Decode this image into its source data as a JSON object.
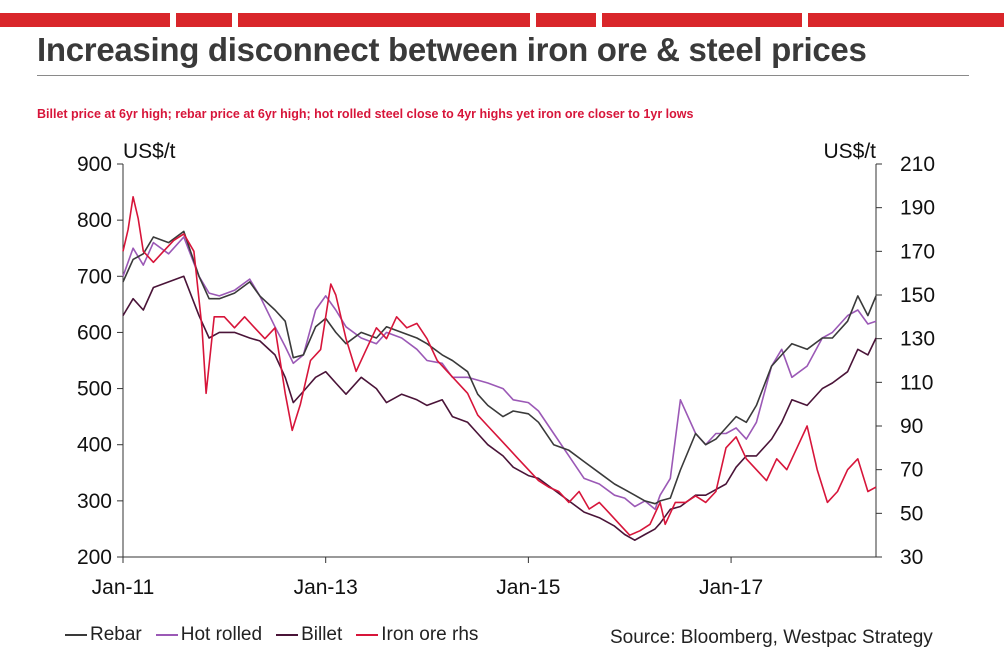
{
  "header": {
    "title": "Increasing disconnect between iron ore & steel prices",
    "subtitle": "Billet price at 6yr high; rebar price at 6yr high; hot rolled steel close to 4yr highs yet iron ore closer to 1yr lows"
  },
  "source": "Source: Bloomberg,  Westpac Strategy",
  "colors": {
    "band": "#d9262a",
    "rebar": "#3a3a3a",
    "hot_rolled": "#9b59b6",
    "billet": "#4a1438",
    "iron_ore": "#d7153a"
  },
  "chart_data": {
    "type": "line",
    "title": "Increasing disconnect between iron ore & steel prices",
    "ylabel_left": "US$/t",
    "ylabel_right": "US$/t",
    "ylim_left": [
      200,
      900
    ],
    "ylim_right": [
      30,
      210
    ],
    "y_ticks_left": [
      900,
      800,
      700,
      600,
      500,
      400,
      300,
      200
    ],
    "y_ticks_right": [
      210,
      190,
      170,
      150,
      130,
      110,
      90,
      70,
      50,
      30
    ],
    "x_range": [
      2011.0,
      2018.43
    ],
    "x_ticks": [
      {
        "x": 2011.0,
        "label": "Jan-11"
      },
      {
        "x": 2013.0,
        "label": "Jan-13"
      },
      {
        "x": 2015.0,
        "label": "Jan-15"
      },
      {
        "x": 2017.0,
        "label": "Jan-17"
      }
    ],
    "series": [
      {
        "name": "Rebar",
        "axis": "left",
        "x": [
          2011.0,
          2011.1,
          2011.2,
          2011.3,
          2011.45,
          2011.6,
          2011.75,
          2011.85,
          2011.95,
          2012.1,
          2012.25,
          2012.35,
          2012.5,
          2012.6,
          2012.68,
          2012.78,
          2012.9,
          2013.0,
          2013.1,
          2013.2,
          2013.35,
          2013.5,
          2013.6,
          2013.75,
          2013.9,
          2014.0,
          2014.15,
          2014.25,
          2014.4,
          2014.5,
          2014.6,
          2014.75,
          2014.85,
          2015.0,
          2015.1,
          2015.25,
          2015.4,
          2015.55,
          2015.7,
          2015.85,
          2015.95,
          2016.05,
          2016.15,
          2016.25,
          2016.3,
          2016.4,
          2016.5,
          2016.65,
          2016.75,
          2016.85,
          2016.95,
          2017.05,
          2017.15,
          2017.25,
          2017.4,
          2017.5,
          2017.6,
          2017.75,
          2017.9,
          2018.0,
          2018.15,
          2018.25,
          2018.35,
          2018.43
        ],
        "values": [
          690,
          730,
          740,
          770,
          760,
          780,
          700,
          660,
          660,
          670,
          690,
          665,
          640,
          620,
          555,
          560,
          610,
          625,
          600,
          580,
          600,
          590,
          610,
          600,
          590,
          580,
          560,
          550,
          530,
          490,
          470,
          450,
          460,
          455,
          440,
          400,
          390,
          370,
          350,
          330,
          320,
          310,
          300,
          295,
          300,
          305,
          355,
          420,
          400,
          410,
          430,
          450,
          440,
          470,
          540,
          560,
          580,
          570,
          590,
          590,
          620,
          665,
          630,
          665
        ]
      },
      {
        "name": "Hot rolled",
        "axis": "left",
        "x": [
          2011.0,
          2011.1,
          2011.2,
          2011.3,
          2011.45,
          2011.6,
          2011.75,
          2011.85,
          2011.95,
          2012.1,
          2012.25,
          2012.35,
          2012.5,
          2012.6,
          2012.68,
          2012.78,
          2012.9,
          2013.0,
          2013.1,
          2013.2,
          2013.35,
          2013.5,
          2013.6,
          2013.75,
          2013.9,
          2014.0,
          2014.15,
          2014.25,
          2014.4,
          2014.5,
          2014.6,
          2014.75,
          2014.85,
          2015.0,
          2015.1,
          2015.25,
          2015.4,
          2015.55,
          2015.7,
          2015.85,
          2015.95,
          2016.05,
          2016.15,
          2016.25,
          2016.3,
          2016.4,
          2016.5,
          2016.65,
          2016.75,
          2016.85,
          2016.95,
          2017.05,
          2017.15,
          2017.25,
          2017.4,
          2017.5,
          2017.6,
          2017.75,
          2017.9,
          2018.0,
          2018.15,
          2018.25,
          2018.35,
          2018.43
        ],
        "values": [
          700,
          750,
          720,
          760,
          740,
          770,
          700,
          670,
          665,
          675,
          695,
          665,
          610,
          575,
          545,
          560,
          640,
          665,
          640,
          610,
          590,
          580,
          600,
          590,
          570,
          550,
          545,
          520,
          520,
          515,
          510,
          500,
          480,
          475,
          460,
          420,
          380,
          340,
          330,
          310,
          305,
          290,
          300,
          285,
          310,
          340,
          480,
          420,
          400,
          420,
          420,
          430,
          410,
          440,
          540,
          570,
          520,
          540,
          590,
          600,
          630,
          640,
          615,
          620
        ]
      },
      {
        "name": "Billet",
        "axis": "left",
        "x": [
          2011.0,
          2011.1,
          2011.2,
          2011.3,
          2011.45,
          2011.6,
          2011.75,
          2011.85,
          2011.95,
          2012.1,
          2012.25,
          2012.35,
          2012.5,
          2012.6,
          2012.68,
          2012.78,
          2012.9,
          2013.0,
          2013.1,
          2013.2,
          2013.35,
          2013.5,
          2013.6,
          2013.75,
          2013.9,
          2014.0,
          2014.15,
          2014.25,
          2014.4,
          2014.5,
          2014.6,
          2014.75,
          2014.85,
          2015.0,
          2015.1,
          2015.25,
          2015.4,
          2015.55,
          2015.7,
          2015.85,
          2015.95,
          2016.05,
          2016.15,
          2016.25,
          2016.3,
          2016.4,
          2016.5,
          2016.65,
          2016.75,
          2016.85,
          2016.95,
          2017.05,
          2017.15,
          2017.25,
          2017.4,
          2017.5,
          2017.6,
          2017.75,
          2017.9,
          2018.0,
          2018.15,
          2018.25,
          2018.35,
          2018.43
        ],
        "values": [
          630,
          660,
          640,
          680,
          690,
          700,
          630,
          590,
          600,
          600,
          590,
          585,
          560,
          520,
          475,
          495,
          520,
          530,
          510,
          490,
          520,
          500,
          475,
          490,
          480,
          470,
          480,
          450,
          440,
          420,
          400,
          380,
          360,
          345,
          340,
          320,
          300,
          280,
          270,
          255,
          240,
          230,
          240,
          250,
          260,
          285,
          290,
          310,
          310,
          320,
          330,
          360,
          380,
          380,
          410,
          440,
          480,
          470,
          500,
          510,
          530,
          570,
          560,
          590
        ]
      },
      {
        "name": "Iron ore rhs",
        "axis": "right",
        "x": [
          2011.0,
          2011.05,
          2011.1,
          2011.15,
          2011.2,
          2011.3,
          2011.4,
          2011.5,
          2011.6,
          2011.7,
          2011.78,
          2011.82,
          2011.9,
          2012.0,
          2012.1,
          2012.2,
          2012.3,
          2012.4,
          2012.5,
          2012.6,
          2012.67,
          2012.75,
          2012.85,
          2012.95,
          2013.0,
          2013.05,
          2013.1,
          2013.2,
          2013.3,
          2013.4,
          2013.5,
          2013.6,
          2013.7,
          2013.8,
          2013.9,
          2014.0,
          2014.1,
          2014.2,
          2014.3,
          2014.4,
          2014.5,
          2014.6,
          2014.7,
          2014.8,
          2014.9,
          2015.0,
          2015.1,
          2015.2,
          2015.3,
          2015.4,
          2015.5,
          2015.6,
          2015.7,
          2015.8,
          2015.9,
          2016.0,
          2016.1,
          2016.2,
          2016.3,
          2016.35,
          2016.45,
          2016.55,
          2016.65,
          2016.75,
          2016.85,
          2016.95,
          2017.05,
          2017.15,
          2017.25,
          2017.35,
          2017.45,
          2017.55,
          2017.65,
          2017.75,
          2017.85,
          2017.95,
          2018.05,
          2018.15,
          2018.25,
          2018.35,
          2018.43
        ],
        "values": [
          170,
          180,
          195,
          185,
          170,
          165,
          170,
          175,
          178,
          170,
          135,
          105,
          140,
          140,
          135,
          140,
          135,
          130,
          135,
          105,
          88,
          100,
          120,
          125,
          140,
          155,
          150,
          130,
          115,
          125,
          135,
          130,
          140,
          135,
          137,
          130,
          120,
          115,
          110,
          105,
          95,
          90,
          85,
          80,
          75,
          70,
          65,
          62,
          60,
          55,
          60,
          52,
          55,
          50,
          45,
          40,
          42,
          45,
          55,
          45,
          55,
          55,
          58,
          55,
          60,
          80,
          85,
          75,
          70,
          65,
          75,
          70,
          80,
          90,
          70,
          55,
          60,
          70,
          75,
          60,
          62
        ]
      }
    ]
  }
}
